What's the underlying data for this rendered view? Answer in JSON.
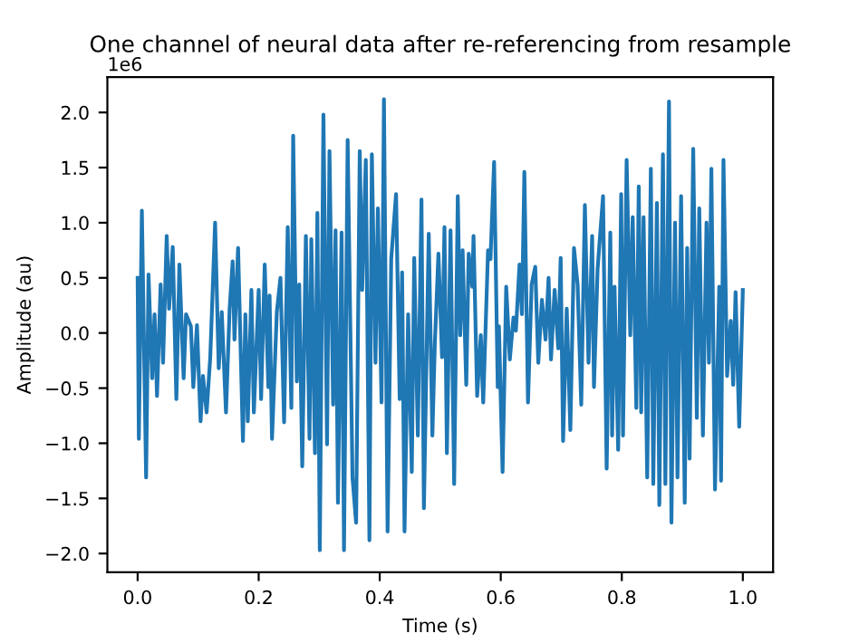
{
  "chart_data": {
    "type": "line",
    "title": "One channel of neural data after re-referencing from resample",
    "xlabel": "Time (s)",
    "ylabel": "Amplitude (au)",
    "annotations": [
      "1e6"
    ],
    "x": [
      0.0,
      0.002,
      0.007,
      0.014,
      0.018,
      0.024,
      0.028,
      0.032,
      0.038,
      0.042,
      0.048,
      0.052,
      0.058,
      0.064,
      0.069,
      0.076,
      0.08,
      0.088,
      0.092,
      0.098,
      0.104,
      0.108,
      0.114,
      0.12,
      0.128,
      0.134,
      0.139,
      0.146,
      0.152,
      0.157,
      0.16,
      0.166,
      0.174,
      0.178,
      0.182,
      0.188,
      0.192,
      0.2,
      0.204,
      0.21,
      0.216,
      0.218,
      0.222,
      0.23,
      0.236,
      0.242,
      0.248,
      0.254,
      0.257,
      0.263,
      0.267,
      0.272,
      0.278,
      0.284,
      0.287,
      0.293,
      0.297,
      0.301,
      0.307,
      0.313,
      0.317,
      0.323,
      0.327,
      0.331,
      0.337,
      0.341,
      0.347,
      0.355,
      0.361,
      0.367,
      0.371,
      0.377,
      0.383,
      0.387,
      0.393,
      0.397,
      0.403,
      0.407,
      0.413,
      0.419,
      0.427,
      0.433,
      0.437,
      0.441,
      0.447,
      0.453,
      0.457,
      0.463,
      0.469,
      0.473,
      0.481,
      0.487,
      0.491,
      0.497,
      0.503,
      0.507,
      0.511,
      0.517,
      0.523,
      0.529,
      0.533,
      0.537,
      0.543,
      0.547,
      0.553,
      0.555,
      0.561,
      0.567,
      0.571,
      0.579,
      0.583,
      0.589,
      0.595,
      0.597,
      0.603,
      0.609,
      0.615,
      0.621,
      0.625,
      0.631,
      0.635,
      0.639,
      0.645,
      0.651,
      0.657,
      0.662,
      0.668,
      0.674,
      0.679,
      0.683,
      0.689,
      0.695,
      0.699,
      0.703,
      0.709,
      0.715,
      0.721,
      0.727,
      0.733,
      0.739,
      0.745,
      0.751,
      0.754,
      0.76,
      0.769,
      0.775,
      0.781,
      0.784,
      0.788,
      0.794,
      0.799,
      0.802,
      0.808,
      0.814,
      0.818,
      0.824,
      0.828,
      0.832,
      0.836,
      0.842,
      0.848,
      0.852,
      0.858,
      0.862,
      0.868,
      0.872,
      0.878,
      0.882,
      0.888,
      0.892,
      0.898,
      0.904,
      0.908,
      0.912,
      0.918,
      0.924,
      0.928,
      0.934,
      0.94,
      0.944,
      0.948,
      0.954,
      0.961,
      0.964,
      0.968,
      0.974,
      0.98,
      0.984,
      0.988,
      0.994,
      1.0
    ],
    "series": [
      {
        "color": "#1f77b4",
        "values": [
          0.5,
          -0.96,
          1.11,
          -1.31,
          0.53,
          -0.41,
          0.17,
          -0.57,
          0.44,
          -0.27,
          0.88,
          0.22,
          0.78,
          -0.6,
          0.62,
          -0.41,
          0.17,
          0.06,
          -0.49,
          0.07,
          -0.8,
          -0.39,
          -0.72,
          -0.22,
          1.0,
          -0.32,
          0.19,
          -0.72,
          0.22,
          0.65,
          -0.06,
          0.77,
          -0.98,
          0.17,
          -0.8,
          0.39,
          -0.72,
          0.39,
          -0.6,
          0.62,
          -0.49,
          0.34,
          -0.96,
          0.19,
          0.5,
          -0.81,
          0.96,
          -0.68,
          1.79,
          -0.44,
          0.44,
          -1.21,
          0.88,
          -0.96,
          0.85,
          -1.09,
          1.09,
          -1.97,
          1.98,
          -1.01,
          1.65,
          -0.65,
          0.93,
          -1.54,
          0.91,
          -1.97,
          1.75,
          -1.31,
          -1.72,
          1.65,
          0.39,
          1.57,
          -1.88,
          1.62,
          -0.27,
          1.13,
          -0.63,
          2.12,
          -1.8,
          0.67,
          1.26,
          -0.6,
          0.55,
          -1.8,
          0.17,
          -1.26,
          0.68,
          -0.93,
          1.21,
          -1.59,
          0.9,
          -0.93,
          -0.11,
          0.72,
          -0.22,
          0.96,
          -1.09,
          0.93,
          -1.37,
          1.24,
          -0.02,
          0.75,
          -0.47,
          0.72,
          0.42,
          0.88,
          -0.57,
          -0.02,
          -0.63,
          0.75,
          0.67,
          1.55,
          -0.49,
          0.06,
          -1.26,
          0.42,
          -0.24,
          0.14,
          0.02,
          0.62,
          0.17,
          1.46,
          -0.63,
          0.44,
          0.6,
          -0.27,
          0.3,
          -0.06,
          0.5,
          -0.24,
          0.39,
          -0.14,
          0.68,
          -0.98,
          0.22,
          -0.88,
          0.77,
          0.44,
          -0.65,
          1.16,
          -0.27,
          0.88,
          -0.49,
          0.58,
          1.24,
          -1.23,
          0.91,
          -0.93,
          0.42,
          -1.06,
          1.26,
          -0.93,
          1.57,
          -0.02,
          1.05,
          -0.68,
          1.33,
          -0.72,
          1.05,
          -1.31,
          1.49,
          -1.37,
          1.18,
          -1.56,
          1.62,
          -1.37,
          2.1,
          -1.72,
          1.0,
          -1.31,
          1.24,
          -1.54,
          0.77,
          -1.14,
          1.67,
          -0.77,
          1.13,
          -0.93,
          1.0,
          -0.27,
          1.49,
          -1.42,
          0.42,
          -1.34,
          1.57,
          -0.39,
          0.11,
          -0.47,
          0.37,
          -0.85,
          0.39
        ]
      }
    ],
    "xlim": [
      -0.05,
      1.05
    ],
    "ylim": [
      -2.17,
      2.32
    ],
    "xticks": [
      {
        "value": 0,
        "label": "0.0"
      },
      {
        "value": 0.2,
        "label": "0.2"
      },
      {
        "value": 0.4,
        "label": "0.4"
      },
      {
        "value": 0.6,
        "label": "0.6"
      },
      {
        "value": 0.8,
        "label": "0.8"
      },
      {
        "value": 1,
        "label": "1.0"
      }
    ],
    "yticks": [
      {
        "value": -2.0,
        "label": "−2.0"
      },
      {
        "value": -1.5,
        "label": "−1.5"
      },
      {
        "value": -1.0,
        "label": "−1.0"
      },
      {
        "value": -0.5,
        "label": "−0.5"
      },
      {
        "value": 0,
        "label": "0.0"
      },
      {
        "value": 0.5,
        "label": "0.5"
      },
      {
        "value": 1.0,
        "label": "1.0"
      },
      {
        "value": 1.5,
        "label": "1.5"
      },
      {
        "value": 2.0,
        "label": "2.0"
      }
    ],
    "grid": false,
    "marker": "none",
    "line_style": "solid"
  }
}
